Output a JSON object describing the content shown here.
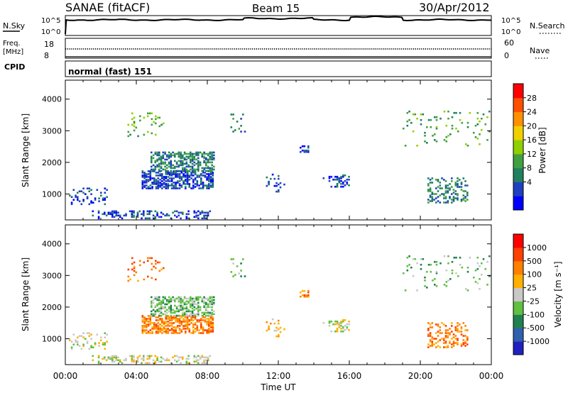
{
  "header": {
    "station": "SANAE (fitACF)",
    "beam": "Beam 15",
    "date": "30/Apr/2012"
  },
  "noise_panel": {
    "left_label": "N.Sky",
    "right_label": "N.Search",
    "y_ticks": [
      "10^5",
      "10^0"
    ],
    "right_ticks": [
      "10^5",
      "10^0"
    ]
  },
  "freq_panel": {
    "left_label_1": "Freq.",
    "left_label_2": "[MHz]",
    "y_ticks": [
      "18",
      "8"
    ],
    "right_label": "Nave",
    "right_ticks": [
      "60",
      "0"
    ]
  },
  "cpid": {
    "label": "CPID",
    "mode": "normal (fast) 151"
  },
  "x_axis": {
    "label": "Time UT",
    "ticks": [
      "00:00",
      "04:00",
      "08:00",
      "12:00",
      "16:00",
      "20:00",
      "00:00"
    ]
  },
  "power_panel": {
    "ylabel": "Slant Range [km]",
    "y_ticks": [
      "4000",
      "3000",
      "2000",
      "1000"
    ],
    "colorbar_label": "Power [dB]",
    "colorbar_ticks": [
      "28",
      "24",
      "20",
      "16",
      "12",
      "8",
      "4"
    ],
    "colors": [
      "#0000ff",
      "#2040c0",
      "#208060",
      "#40a040",
      "#90d000",
      "#f0d000",
      "#ff9000",
      "#ff5000",
      "#ff0000"
    ]
  },
  "velocity_panel": {
    "ylabel": "Slant Range [km]",
    "y_ticks": [
      "4000",
      "3000",
      "2000",
      "1000"
    ],
    "colorbar_label": "Velocity [m s⁻¹]",
    "colorbar_ticks": [
      "1000",
      "500",
      "100",
      "25",
      "-25",
      "-100",
      "-500",
      "-1000"
    ],
    "colors": [
      "#2020c0",
      "#3060b0",
      "#208050",
      "#60c040",
      "#c8c8c8",
      "#ffb000",
      "#ff8000",
      "#ff4000",
      "#ff0000"
    ]
  },
  "chart_data": {
    "type": "heatmap",
    "title": "SANAE (fitACF)",
    "xlabel": "Time UT",
    "ylabel": "Slant Range [km]",
    "xlim_hours": [
      0,
      24
    ],
    "ylim_km": [
      180,
      4600
    ],
    "scatter_regions": [
      {
        "t_start": 0.2,
        "t_end": 2.4,
        "r_start": 650,
        "r_end": 1150,
        "density": 0.25,
        "power_level": 1,
        "velocity_level": 4
      },
      {
        "t_start": 1.5,
        "t_end": 8.2,
        "r_start": 200,
        "r_end": 450,
        "density": 0.35,
        "power_level": 1,
        "velocity_level": 4
      },
      {
        "t_start": 4.3,
        "t_end": 8.3,
        "r_start": 1150,
        "r_end": 1700,
        "density": 0.6,
        "power_level": 1,
        "velocity_level": 6
      },
      {
        "t_start": 4.8,
        "t_end": 8.4,
        "r_start": 1700,
        "r_end": 2300,
        "density": 0.55,
        "power_level": 2,
        "velocity_level": 3
      },
      {
        "t_start": 3.5,
        "t_end": 5.5,
        "r_start": 2800,
        "r_end": 3550,
        "density": 0.12,
        "power_level": 3,
        "velocity_level": 6
      },
      {
        "t_start": 9.3,
        "t_end": 10.2,
        "r_start": 2900,
        "r_end": 3500,
        "density": 0.1,
        "power_level": 2,
        "velocity_level": 3
      },
      {
        "t_start": 11.3,
        "t_end": 12.3,
        "r_start": 1000,
        "r_end": 1600,
        "density": 0.15,
        "power_level": 1,
        "velocity_level": 5
      },
      {
        "t_start": 13.2,
        "t_end": 13.7,
        "r_start": 2300,
        "r_end": 2500,
        "density": 0.4,
        "power_level": 1,
        "velocity_level": 6
      },
      {
        "t_start": 14.5,
        "t_end": 16.0,
        "r_start": 1200,
        "r_end": 1600,
        "density": 0.3,
        "power_level": 1,
        "velocity_level": 4
      },
      {
        "t_start": 20.4,
        "t_end": 22.6,
        "r_start": 700,
        "r_end": 1500,
        "density": 0.3,
        "power_level": 2,
        "velocity_level": 6
      },
      {
        "t_start": 19.0,
        "t_end": 24.0,
        "r_start": 2500,
        "r_end": 3600,
        "density": 0.06,
        "power_level": 3,
        "velocity_level": 3
      }
    ]
  }
}
